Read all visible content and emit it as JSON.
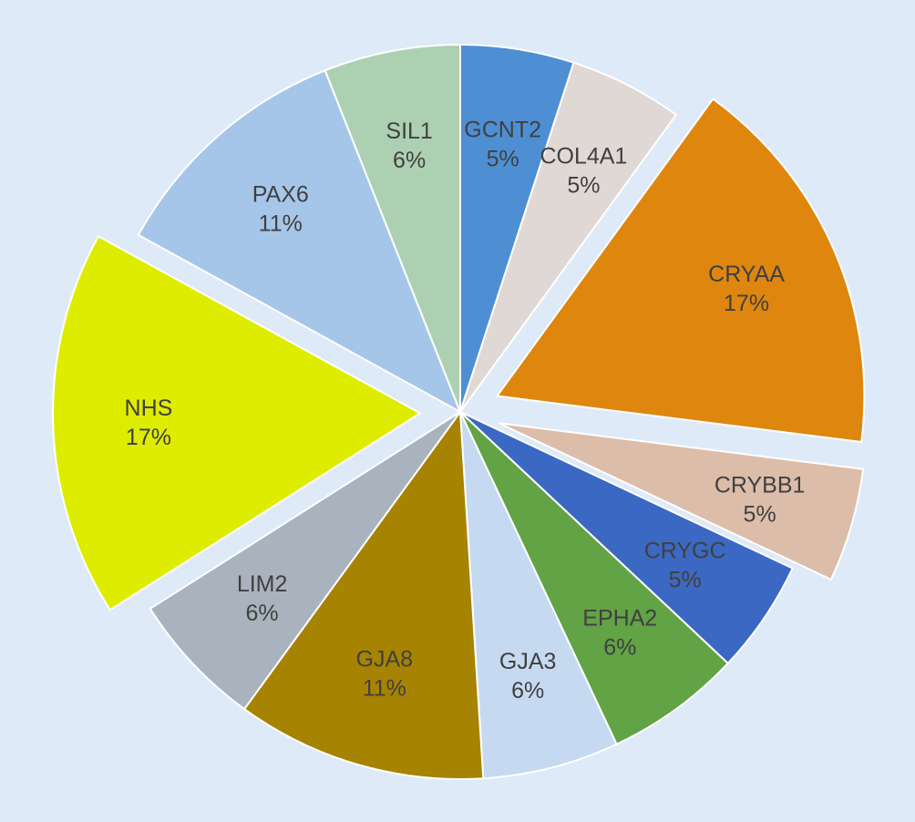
{
  "chart_data": {
    "type": "pie",
    "title": "",
    "slices": [
      {
        "label": "GCNT2",
        "value": 5,
        "value_label": "5%",
        "color": "#4e8fd4",
        "exploded": false
      },
      {
        "label": "COL4A1",
        "value": 5,
        "value_label": "5%",
        "color": "#e0d8d5",
        "exploded": false
      },
      {
        "label": "CRYAA",
        "value": 17,
        "value_label": "17%",
        "color": "#df860f",
        "exploded": true
      },
      {
        "label": "CRYBB1",
        "value": 5,
        "value_label": "5%",
        "color": "#dcbda9",
        "exploded": true
      },
      {
        "label": "CRYGC",
        "value": 5,
        "value_label": "5%",
        "color": "#3b68c2",
        "exploded": false
      },
      {
        "label": "EPHA2",
        "value": 6,
        "value_label": "6%",
        "color": "#62a345",
        "exploded": false
      },
      {
        "label": "GJA3",
        "value": 6,
        "value_label": "6%",
        "color": "#c5daf1",
        "exploded": false
      },
      {
        "label": "GJA8",
        "value": 11,
        "value_label": "11%",
        "color": "#a68300",
        "exploded": false
      },
      {
        "label": "LIM2",
        "value": 6,
        "value_label": "6%",
        "color": "#a9b3bd",
        "exploded": false
      },
      {
        "label": "NHS",
        "value": 17,
        "value_label": "17%",
        "color": "#deec00",
        "exploded": true
      },
      {
        "label": "PAX6",
        "value": 11,
        "value_label": "11%",
        "color": "#a6c6e9",
        "exploded": false
      },
      {
        "label": "SIL1",
        "value": 6,
        "value_label": "6%",
        "color": "#aed0b2",
        "exploded": false
      }
    ],
    "start_angle": "12 o'clock",
    "direction": "clockwise",
    "legend": "none",
    "label_position": "inside"
  }
}
